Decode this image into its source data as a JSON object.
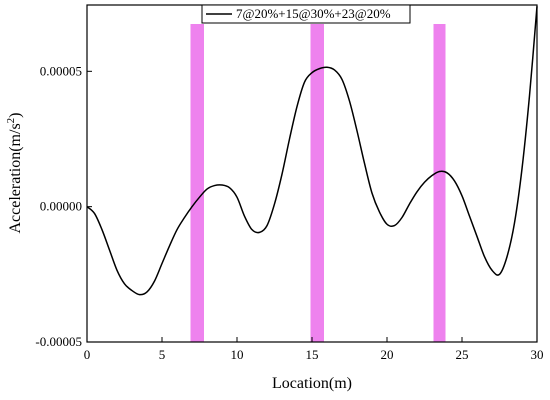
{
  "chart_data": {
    "type": "line",
    "xlabel": "Location(m)",
    "ylabel_prefix": "Acceleration(m/s",
    "ylabel_sup": "2",
    "ylabel_suffix": ")",
    "xlim": [
      0,
      30
    ],
    "ylim": [
      -5e-05,
      7.45e-05
    ],
    "x_ticks": [
      0,
      5,
      10,
      15,
      20,
      25,
      30
    ],
    "x_tick_labels": [
      "0",
      "5",
      "10",
      "15",
      "20",
      "25",
      "30"
    ],
    "y_ticks": [
      -5e-05,
      0,
      5e-05
    ],
    "y_tick_labels": [
      "-0.00005",
      "0.00000",
      "0.00005"
    ],
    "grid": false,
    "legend_position": "top-right",
    "series": [
      {
        "name": "7@20%+15@30%+23@20%",
        "color": "#000000",
        "x": [
          0,
          0.5,
          1,
          1.5,
          2,
          2.5,
          3,
          3.5,
          4,
          4.5,
          5,
          5.5,
          6,
          6.5,
          7,
          7.5,
          8,
          8.5,
          9,
          9.5,
          10,
          10.5,
          11,
          11.5,
          12,
          12.5,
          13,
          13.5,
          14,
          14.5,
          15,
          15.5,
          16,
          16.5,
          17,
          17.5,
          18,
          18.5,
          19,
          19.5,
          20,
          20.5,
          21,
          21.5,
          22,
          22.5,
          23,
          23.5,
          24,
          24.5,
          25,
          25.5,
          26,
          26.5,
          27,
          27.5,
          28,
          28.5,
          29,
          29.5,
          30
        ],
        "y": [
          0,
          -2.5e-06,
          -8.5e-06,
          -1.6e-05,
          -2.35e-05,
          -2.85e-05,
          -3.1e-05,
          -3.25e-05,
          -3.15e-05,
          -2.75e-05,
          -2.1e-05,
          -1.45e-05,
          -8.5e-06,
          -4e-06,
          0,
          3.5e-06,
          6.5e-06,
          7.8e-06,
          8e-06,
          7e-06,
          3.5e-06,
          -3.5e-06,
          -8.5e-06,
          -9.5e-06,
          -7e-06,
          1e-06,
          1.2e-05,
          2.5e-05,
          3.7e-05,
          4.6e-05,
          4.95e-05,
          5.1e-05,
          5.15e-05,
          5.05e-05,
          4.7e-05,
          3.9e-05,
          2.8e-05,
          1.6e-05,
          5e-06,
          -2e-06,
          -6.5e-06,
          -7e-06,
          -4e-06,
          1e-06,
          5.5e-06,
          9e-06,
          1.15e-05,
          1.3e-05,
          1.25e-05,
          9.5e-06,
          4e-06,
          -3.5e-06,
          -1.1e-05,
          -1.85e-05,
          -2.35e-05,
          -2.5e-05,
          -1.85e-05,
          -6e-06,
          1.4e-05,
          4.1e-05,
          7.4e-05
        ]
      }
    ],
    "highlight_bands": [
      {
        "x0": 6.9,
        "x1": 7.8,
        "color": "#ee82ee"
      },
      {
        "x0": 14.9,
        "x1": 15.8,
        "color": "#ee82ee"
      },
      {
        "x0": 23.1,
        "x1": 23.9,
        "color": "#ee82ee"
      }
    ]
  }
}
